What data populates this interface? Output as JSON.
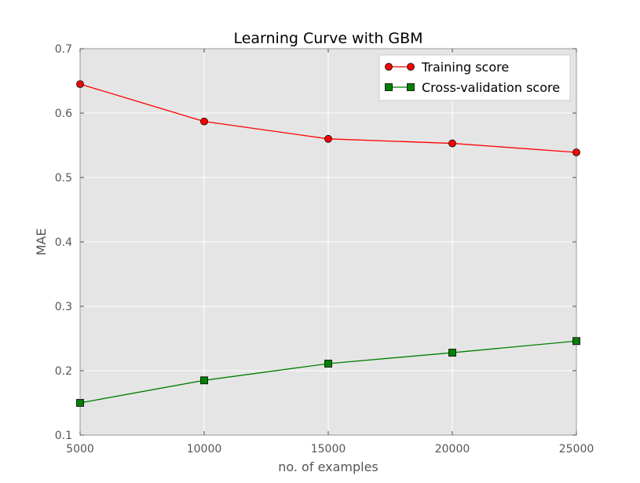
{
  "chart_data": {
    "type": "line",
    "title": "Learning Curve with GBM",
    "xlabel": "no. of examples",
    "ylabel": "MAE",
    "x": [
      5000,
      10000,
      15000,
      20000,
      25000
    ],
    "xlim": [
      5000,
      25000
    ],
    "ylim": [
      0.1,
      0.7
    ],
    "xticks": [
      5000,
      10000,
      15000,
      20000,
      25000
    ],
    "xtick_labels": [
      "5000",
      "10000",
      "15000",
      "20000",
      "25000"
    ],
    "yticks": [
      0.1,
      0.2,
      0.3,
      0.4,
      0.5,
      0.6,
      0.7
    ],
    "ytick_labels": [
      "0.1",
      "0.2",
      "0.3",
      "0.4",
      "0.5",
      "0.6",
      "0.7"
    ],
    "grid": true,
    "legend_position": "top-right",
    "series": [
      {
        "name": "Training score",
        "values": [
          0.645,
          0.587,
          0.56,
          0.553,
          0.539
        ],
        "color": "#ff0000",
        "marker": "circle"
      },
      {
        "name": "Cross-validation score",
        "values": [
          0.15,
          0.185,
          0.211,
          0.228,
          0.246
        ],
        "color": "#008000",
        "marker": "square"
      }
    ],
    "colors": {
      "plot_background": "#e5e5e5",
      "grid": "#ffffff",
      "text": "#555555"
    }
  }
}
